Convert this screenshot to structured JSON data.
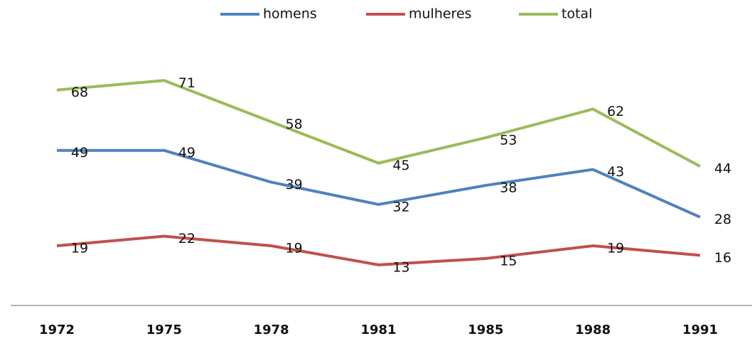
{
  "chart_data": {
    "type": "line",
    "categories": [
      "1972",
      "1975",
      "1978",
      "1981",
      "1985",
      "1988",
      "1991"
    ],
    "series": [
      {
        "name": "homens",
        "color": "#4f81bd",
        "values": [
          49,
          49,
          39,
          32,
          38,
          43,
          28
        ]
      },
      {
        "name": "mulheres",
        "color": "#c0504d",
        "values": [
          19,
          22,
          19,
          13,
          15,
          19,
          16
        ]
      },
      {
        "name": "total",
        "color": "#9bbb59",
        "values": [
          68,
          71,
          58,
          45,
          53,
          62,
          44
        ]
      }
    ],
    "ylim": [
      0,
      80
    ],
    "legend": "top"
  }
}
